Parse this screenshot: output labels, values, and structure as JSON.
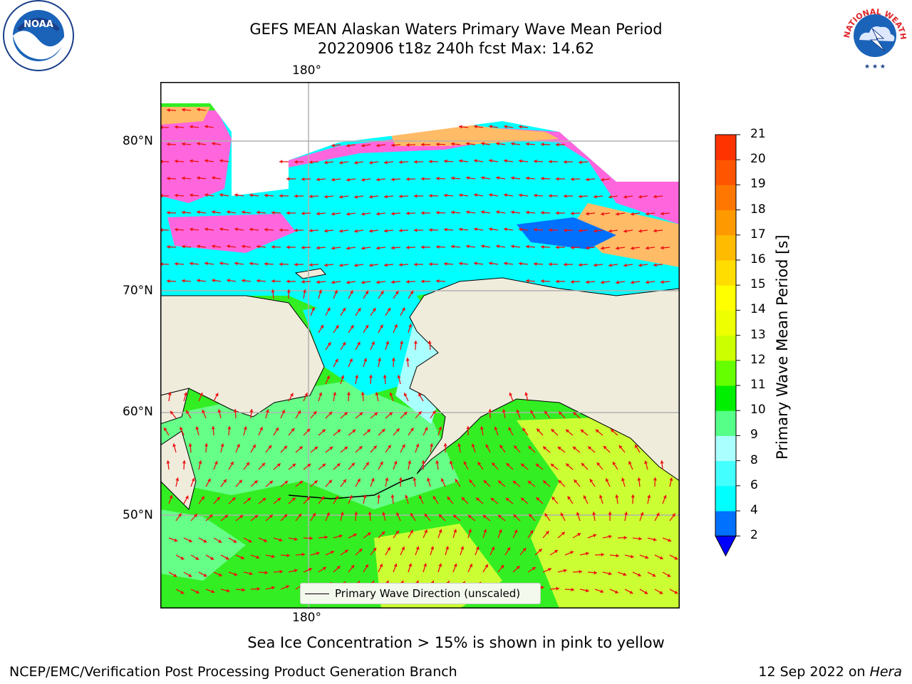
{
  "title": {
    "line1": "GEFS MEAN Alaskan Waters Primary Wave Mean Period",
    "line2": "20220906 t18z 240h fcst   Max: 14.62"
  },
  "map": {
    "lon_top_label": "180°",
    "lon_bottom_label": "180°",
    "lat_labels": [
      "80°N",
      "70°N",
      "60°N",
      "50°N"
    ],
    "colors": {
      "land": "#efecdc",
      "ocean_cyan": "#00ffff",
      "ocean_green": "#33ee22",
      "ocean_lightgreen": "#66ff88",
      "ocean_yellowgreen": "#ccff33",
      "ice_pink": "#ff66dd",
      "ice_orange": "#ffbb66",
      "arrow": "#ee1111",
      "grid": "#b0b0b0"
    },
    "legend_label": "Primary Wave Direction (unscaled)"
  },
  "colorbar": {
    "label": "Primary Wave Mean Period [s]",
    "ticks": [
      "2",
      "4",
      "6",
      "8",
      "9",
      "10",
      "11",
      "12",
      "13",
      "14",
      "15",
      "16",
      "17",
      "18",
      "19",
      "20",
      "21"
    ],
    "colors": [
      "#0070ff",
      "#00ffff",
      "#44ffff",
      "#aaffff",
      "#55ff88",
      "#00ee00",
      "#66ff00",
      "#ccff00",
      "#eeff00",
      "#ffff00",
      "#ffdd00",
      "#ffbb00",
      "#ff9900",
      "#ff7700",
      "#ff5500",
      "#ff3300",
      "#ff0000"
    ],
    "under_color": "#0000ff"
  },
  "note": "Sea Ice Concentration > 15% is shown in pink to yellow",
  "footer": {
    "left": "NCEP/EMC/Verification Post Processing Product Generation Branch",
    "date": "12 Sep 2022 on",
    "machine": "Hera"
  },
  "logos": {
    "noaa": "NOAA",
    "nws": "NATIONAL WEATHER SERVICE"
  }
}
